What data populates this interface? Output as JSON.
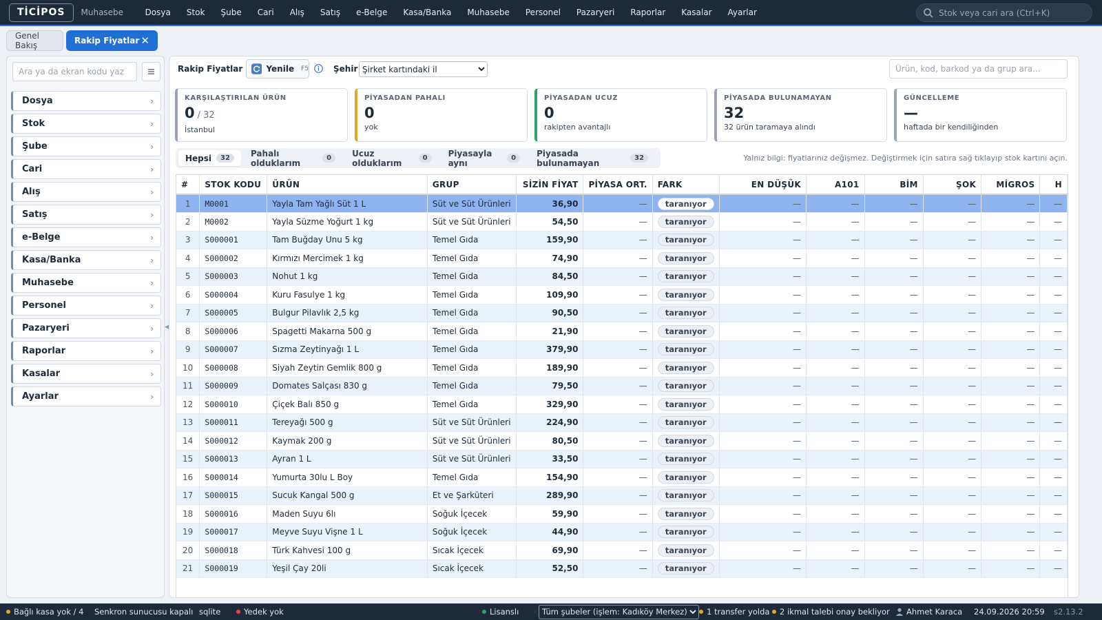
{
  "app": {
    "logo": "TİCİPOS",
    "module": "Muhasebe"
  },
  "menu": [
    "Dosya",
    "Stok",
    "Şube",
    "Cari",
    "Alış",
    "Satış",
    "e-Belge",
    "Kasa/Banka",
    "Muhasebe",
    "Personel",
    "Pazaryeri",
    "Raporlar",
    "Kasalar",
    "Ayarlar"
  ],
  "global_search": {
    "placeholder": "Stok veya cari ara (Ctrl+K)"
  },
  "tabs": {
    "overview": "Genel Bakış",
    "active": "Rakip Fiyatlar",
    "close": "✕"
  },
  "sidebar": {
    "search_placeholder": "Ara ya da ekran kodu yaz",
    "items": [
      "Dosya",
      "Stok",
      "Şube",
      "Cari",
      "Alış",
      "Satış",
      "e-Belge",
      "Kasa/Banka",
      "Muhasebe",
      "Personel",
      "Pazaryeri",
      "Raporlar",
      "Kasalar",
      "Ayarlar"
    ]
  },
  "toolbar": {
    "title": "Rakip Fiyatlar",
    "refresh_label": "Yenile",
    "refresh_key": "F5",
    "city_label": "Şehir",
    "city_value": "Şirket kartındaki il",
    "search_placeholder": "Ürün, kod, barkod ya da grup ara..."
  },
  "cards": [
    {
      "label": "KARŞILAŞTIRILAN ÜRÜN",
      "value": "0",
      "value_suffix": "/ 32",
      "sub": "İstanbul",
      "accent": "#9aa4b2"
    },
    {
      "label": "PİYASADAN PAHALI",
      "value": "0",
      "value_suffix": "",
      "sub": "yok",
      "accent": "#e3a52a"
    },
    {
      "label": "PİYASADAN UCUZ",
      "value": "0",
      "value_suffix": "",
      "sub": "rakipten avantajlı",
      "accent": "#2ea36a"
    },
    {
      "label": "PİYASADA BULUNAMAYAN",
      "value": "32",
      "value_suffix": "",
      "sub": "32 ürün taramaya alındı",
      "accent": "#9aa4b2"
    },
    {
      "label": "GÜNCELLEME",
      "value": "—",
      "value_suffix": "",
      "sub": "haftada bir kendiliğinden",
      "accent": "#9aa4b2"
    }
  ],
  "filters": [
    {
      "label": "Hepsi",
      "count": "32",
      "active": true
    },
    {
      "label": "Pahalı olduklarım",
      "count": "0",
      "active": false
    },
    {
      "label": "Ucuz olduklarım",
      "count": "0",
      "active": false
    },
    {
      "label": "Piyasayla aynı",
      "count": "0",
      "active": false
    },
    {
      "label": "Piyasada bulunamayan",
      "count": "32",
      "active": false
    }
  ],
  "notice": "Yalnız bilgi: fiyatlarınız değişmez. Değiştirmek için satıra sağ tıklayıp stok kartını açın.",
  "table": {
    "columns": [
      "#",
      "STOK KODU",
      "ÜRÜN",
      "GRUP",
      "SİZİN FİYAT",
      "PİYASA ORT.",
      "FARK",
      "EN DÜŞÜK",
      "A101",
      "BİM",
      "ŞOK",
      "MİGROS",
      "H"
    ],
    "dash": "—",
    "status_label": "taranıyor",
    "rows": [
      [
        "1",
        "M0001",
        "Yayla Tam Yağlı Süt 1 L",
        "Süt ve Süt Ürünleri",
        "36,90"
      ],
      [
        "2",
        "M0002",
        "Yayla Süzme Yoğurt 1 kg",
        "Süt ve Süt Ürünleri",
        "54,50"
      ],
      [
        "3",
        "S000001",
        "Tam Buğday Unu 5 kg",
        "Temel Gıda",
        "159,90"
      ],
      [
        "4",
        "S000002",
        "Kırmızı Mercimek 1 kg",
        "Temel Gıda",
        "74,90"
      ],
      [
        "5",
        "S000003",
        "Nohut 1 kg",
        "Temel Gıda",
        "84,50"
      ],
      [
        "6",
        "S000004",
        "Kuru Fasulye 1 kg",
        "Temel Gıda",
        "109,90"
      ],
      [
        "7",
        "S000005",
        "Bulgur Pilavlık 2,5 kg",
        "Temel Gıda",
        "90,50"
      ],
      [
        "8",
        "S000006",
        "Spagetti Makarna 500 g",
        "Temel Gıda",
        "21,90"
      ],
      [
        "9",
        "S000007",
        "Sızma Zeytinyağı 1 L",
        "Temel Gıda",
        "379,90"
      ],
      [
        "10",
        "S000008",
        "Siyah Zeytin Gemlik 800 g",
        "Temel Gıda",
        "189,90"
      ],
      [
        "11",
        "S000009",
        "Domates Salçası 830 g",
        "Temel Gıda",
        "79,50"
      ],
      [
        "12",
        "S000010",
        "Çiçek Balı 850 g",
        "Temel Gıda",
        "329,90"
      ],
      [
        "13",
        "S000011",
        "Tereyağı 500 g",
        "Süt ve Süt Ürünleri",
        "224,90"
      ],
      [
        "14",
        "S000012",
        "Kaymak 200 g",
        "Süt ve Süt Ürünleri",
        "80,50"
      ],
      [
        "15",
        "S000013",
        "Ayran 1 L",
        "Süt ve Süt Ürünleri",
        "33,50"
      ],
      [
        "16",
        "S000014",
        "Yumurta 30lu L Boy",
        "Temel Gıda",
        "154,90"
      ],
      [
        "17",
        "S000015",
        "Sucuk Kangal 500 g",
        "Et ve Şarküteri",
        "289,90"
      ],
      [
        "18",
        "S000016",
        "Maden Suyu 6lı",
        "Soğuk İçecek",
        "59,90"
      ],
      [
        "19",
        "S000017",
        "Meyve Suyu Vişne 1 L",
        "Soğuk İçecek",
        "44,90"
      ],
      [
        "20",
        "S000018",
        "Türk Kahvesi 100 g",
        "Sıcak İçecek",
        "69,90"
      ],
      [
        "21",
        "S000019",
        "Yeşil Çay 20li",
        "Sıcak İçecek",
        "52,50"
      ]
    ]
  },
  "statusbar": {
    "kasa": "Bağlı kasa yok / 4",
    "sync": "Senkron sunucusu kapalı",
    "db": "sqlite",
    "backup": "Yedek yok",
    "license": "Lisanslı",
    "branch": "Tüm şubeler (işlem: Kadıköy Merkez)",
    "transfer": "1 transfer yolda",
    "ikmal": "2 ikmal talebi onay bekliyor",
    "user": "Ahmet Karaca",
    "datetime": "24.09.2026 20:59",
    "version": "s2.13.2"
  },
  "colors": {
    "accent": "#1f6fd4",
    "nav_bg": "#1e2a3a",
    "selected_row": "#8fb3ee",
    "stripe": "#eaf3fc",
    "warning_dot": "#e3a52a",
    "error_dot": "#e04848",
    "ok_dot": "#2ea36a"
  }
}
